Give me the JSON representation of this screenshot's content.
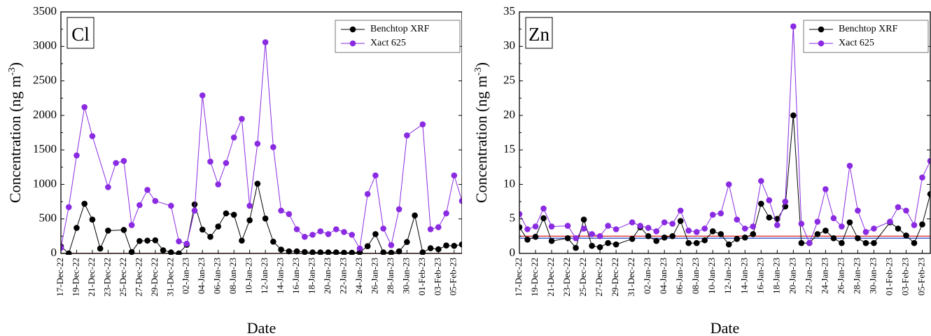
{
  "chart_data": [
    {
      "type": "line",
      "panel_label": "Cl",
      "xlabel": "Date",
      "ylabel": "Concentration (ng m",
      "ylabel_sup": "-3",
      "ylabel_close": ")",
      "ylim": [
        0,
        3500
      ],
      "yticks": [
        "0",
        "500",
        "1000",
        "1500",
        "2000",
        "2500",
        "3000",
        "3500"
      ],
      "xlim": [
        0,
        51
      ],
      "xtick_labels": [
        "17-Dec-22",
        "19-Dec-22",
        "21-Dec-22",
        "23-Dec-22",
        "25-Dec-22",
        "27-Dec-22",
        "29-Dec-22",
        "31-Dec-22",
        "02-Jan-23",
        "04-Jan-23",
        "06-Jan-23",
        "08-Jan-23",
        "10-Jan-23",
        "12-Jan-23",
        "14-Jan-23",
        "16-Jan-23",
        "18-Jan-23",
        "20-Jan-23",
        "22-Jan-23",
        "24-Jan-23",
        "26-Jan-23",
        "28-Jan-23",
        "30-Jan-23",
        "01-Feb-23",
        "03-Feb-23",
        "05-Feb-23"
      ],
      "legend_position": "top-right",
      "reference_lines": [
        {
          "y": 0,
          "color": "#dd2222"
        }
      ],
      "series": [
        {
          "name": "Benchtop XRF",
          "color": "#000000",
          "x": [
            0,
            1,
            2,
            3,
            4,
            5,
            6,
            8,
            9,
            10,
            11,
            12,
            13,
            14,
            15,
            16,
            17,
            18,
            19,
            20,
            21,
            22,
            23,
            24,
            25,
            26,
            27,
            28,
            29,
            30,
            31,
            32,
            33,
            34,
            35,
            36,
            37,
            38,
            39,
            40,
            41,
            42,
            43,
            44,
            45,
            46,
            47,
            48,
            49,
            50,
            51
          ],
          "y": [
            100,
            0,
            370,
            720,
            490,
            70,
            330,
            340,
            20,
            180,
            185,
            190,
            45,
            15,
            0,
            125,
            710,
            345,
            240,
            390,
            580,
            560,
            185,
            480,
            1010,
            505,
            170,
            55,
            30,
            30,
            20,
            15,
            15,
            15,
            15,
            10,
            10,
            15,
            105,
            280,
            15,
            10,
            30,
            165,
            550,
            15,
            75,
            60,
            115,
            110,
            130
          ]
        },
        {
          "name": "Xact 625",
          "color": "#8a2be2",
          "x": [
            0,
            1,
            2,
            3,
            4,
            6,
            7,
            8,
            9,
            10,
            11,
            12,
            14,
            15,
            16,
            17,
            18,
            19,
            20,
            21,
            22,
            23,
            24,
            25,
            26,
            27,
            28,
            29,
            30,
            31,
            32,
            33,
            34,
            35,
            36,
            37,
            38,
            39,
            40,
            41,
            42,
            43,
            44,
            46,
            47,
            48,
            49,
            50,
            51
          ],
          "y": [
            80,
            670,
            1420,
            2120,
            1700,
            960,
            1310,
            1340,
            410,
            700,
            920,
            760,
            690,
            175,
            140,
            620,
            2290,
            1330,
            1000,
            1310,
            1680,
            1950,
            690,
            1590,
            3060,
            1540,
            620,
            570,
            350,
            240,
            270,
            320,
            280,
            350,
            310,
            270,
            70,
            860,
            1130,
            360,
            120,
            640,
            1710,
            1870,
            350,
            380,
            580,
            1130,
            760
          ]
        }
      ]
    },
    {
      "type": "line",
      "panel_label": "Zn",
      "xlabel": "Date",
      "ylabel": "Concentration (ng m",
      "ylabel_sup": "-3",
      "ylabel_close": ")",
      "ylim": [
        0,
        35
      ],
      "yticks": [
        "0",
        "5",
        "10",
        "15",
        "20",
        "25",
        "30",
        "35"
      ],
      "xlim": [
        0,
        51
      ],
      "xtick_labels": [
        "17-Dec-22",
        "19-Dec-22",
        "21-Dec-22",
        "23-Dec-22",
        "25-Dec-22",
        "27-Dec-22",
        "29-Dec-22",
        "31-Dec-22",
        "02-Jan-23",
        "04-Jan-23",
        "06-Jan-23",
        "08-Jan-23",
        "10-Jan-23",
        "12-Jan-23",
        "14-Jan-23",
        "16-Jan-23",
        "18-Jan-23",
        "20-Jan-23",
        "22-Jan-23",
        "24-Jan-23",
        "26-Jan-23",
        "28-Jan-23",
        "30-Jan-23",
        "01-Feb-23",
        "03-Feb-23",
        "05-Feb-23"
      ],
      "legend_position": "top-right",
      "reference_lines": [
        {
          "y": 2.5,
          "color": "#dd2222"
        },
        {
          "y": 2.2,
          "color": "#3355cc"
        }
      ],
      "series": [
        {
          "name": "Benchtop XRF",
          "color": "#000000",
          "x": [
            0,
            1,
            2,
            3,
            4,
            6,
            7,
            8,
            9,
            10,
            11,
            12,
            14,
            15,
            16,
            17,
            18,
            19,
            20,
            21,
            22,
            23,
            24,
            25,
            26,
            27,
            28,
            29,
            30,
            31,
            32,
            33,
            34,
            35,
            36,
            37,
            38,
            39,
            40,
            41,
            42,
            43,
            44,
            46,
            47,
            48,
            49,
            50,
            51
          ],
          "y": [
            3.8,
            2.0,
            2.4,
            5.1,
            1.8,
            2.2,
            0.8,
            4.9,
            1.1,
            0.9,
            1.5,
            1.3,
            2.1,
            3.8,
            2.5,
            1.8,
            2.3,
            2.5,
            4.7,
            1.5,
            1.5,
            1.9,
            3.2,
            2.8,
            1.3,
            2.1,
            2.3,
            2.8,
            7.2,
            5.2,
            5.0,
            6.8,
            20.0,
            1.5,
            1.5,
            2.8,
            3.3,
            2.2,
            1.5,
            4.5,
            2.2,
            1.5,
            1.5,
            4.5,
            3.6,
            2.6,
            1.5,
            4.2,
            8.6
          ]
        },
        {
          "name": "Xact 625",
          "color": "#8a2be2",
          "x": [
            0,
            1,
            2,
            3,
            4,
            6,
            7,
            8,
            9,
            10,
            11,
            12,
            14,
            15,
            16,
            17,
            18,
            19,
            20,
            21,
            22,
            23,
            24,
            25,
            26,
            27,
            28,
            29,
            30,
            31,
            32,
            33,
            34,
            35,
            36,
            37,
            38,
            39,
            40,
            41,
            42,
            43,
            44,
            46,
            47,
            48,
            49,
            50,
            51
          ],
          "y": [
            5.7,
            3.5,
            3.9,
            6.5,
            3.9,
            4.0,
            2.2,
            3.6,
            2.8,
            2.5,
            4.0,
            3.5,
            4.5,
            4.0,
            3.7,
            3.2,
            4.5,
            4.3,
            6.2,
            3.3,
            3.1,
            3.6,
            5.6,
            5.8,
            10.0,
            4.9,
            3.6,
            3.9,
            10.5,
            7.7,
            4.1,
            7.5,
            32.9,
            4.3,
            1.5,
            4.6,
            9.3,
            5.1,
            3.9,
            12.7,
            6.2,
            3.1,
            3.6,
            4.6,
            6.7,
            6.2,
            4.1,
            11.0,
            13.4
          ]
        }
      ]
    }
  ]
}
